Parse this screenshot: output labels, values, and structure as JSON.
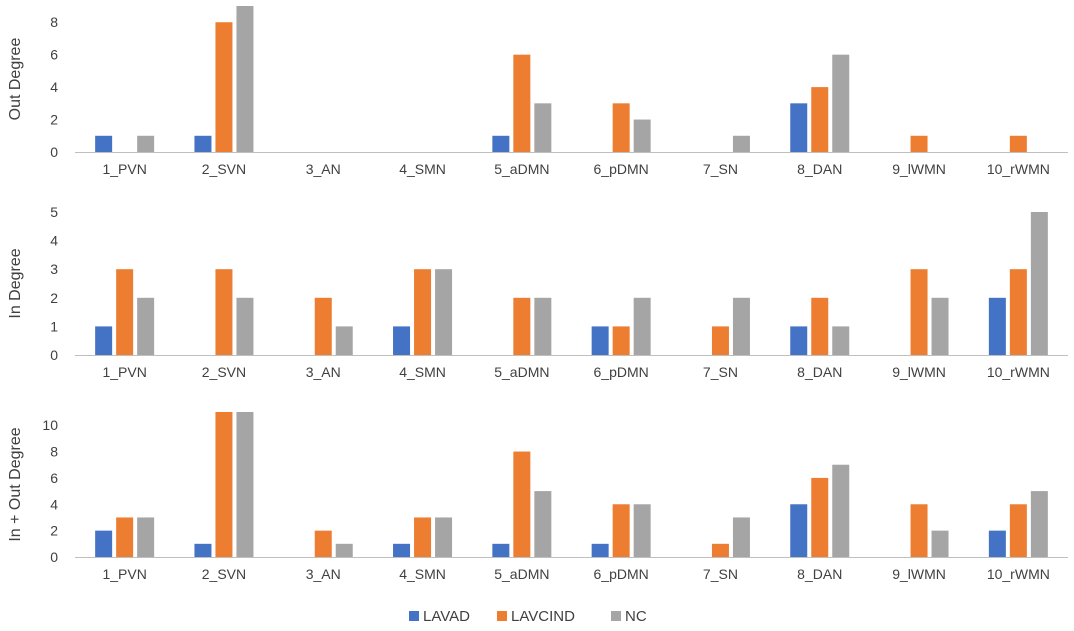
{
  "chart_data": [
    {
      "type": "bar",
      "title": "",
      "xlabel": "",
      "ylabel": "Out Degree",
      "ylim": [
        0,
        9
      ],
      "yticks": [
        0,
        2,
        4,
        6,
        8
      ],
      "categories": [
        "1_PVN",
        "2_SVN",
        "3_AN",
        "4_SMN",
        "5_aDMN",
        "6_pDMN",
        "7_SN",
        "8_DAN",
        "9_lWMN",
        "10_rWMN"
      ],
      "series": [
        {
          "name": "LAVAD",
          "values": [
            1,
            1,
            0,
            0,
            1,
            0,
            0,
            3,
            0,
            0
          ]
        },
        {
          "name": "LAVCIND",
          "values": [
            0,
            8,
            0,
            0,
            6,
            3,
            0,
            4,
            1,
            1
          ]
        },
        {
          "name": "NC",
          "values": [
            1,
            9,
            0,
            0,
            3,
            2,
            1,
            6,
            0,
            0
          ]
        }
      ]
    },
    {
      "type": "bar",
      "title": "",
      "xlabel": "",
      "ylabel": "In Degree",
      "ylim": [
        0,
        5
      ],
      "yticks": [
        0,
        1,
        2,
        3,
        4,
        5
      ],
      "categories": [
        "1_PVN",
        "2_SVN",
        "3_AN",
        "4_SMN",
        "5_aDMN",
        "6_pDMN",
        "7_SN",
        "8_DAN",
        "9_lWMN",
        "10_rWMN"
      ],
      "series": [
        {
          "name": "LAVAD",
          "values": [
            1,
            0,
            0,
            1,
            0,
            1,
            0,
            1,
            0,
            2
          ]
        },
        {
          "name": "LAVCIND",
          "values": [
            3,
            3,
            2,
            3,
            2,
            1,
            1,
            2,
            3,
            3
          ]
        },
        {
          "name": "NC",
          "values": [
            2,
            2,
            1,
            3,
            2,
            2,
            2,
            1,
            2,
            5
          ]
        }
      ]
    },
    {
      "type": "bar",
      "title": "",
      "xlabel": "",
      "ylabel": "In + Out Degree",
      "ylim": [
        0,
        11
      ],
      "yticks": [
        0,
        2,
        4,
        6,
        8,
        10
      ],
      "categories": [
        "1_PVN",
        "2_SVN",
        "3_AN",
        "4_SMN",
        "5_aDMN",
        "6_pDMN",
        "7_SN",
        "8_DAN",
        "9_lWMN",
        "10_rWMN"
      ],
      "series": [
        {
          "name": "LAVAD",
          "values": [
            2,
            1,
            0,
            1,
            1,
            1,
            0,
            4,
            0,
            2
          ]
        },
        {
          "name": "LAVCIND",
          "values": [
            3,
            11,
            2,
            3,
            8,
            4,
            1,
            6,
            4,
            4
          ]
        },
        {
          "name": "NC",
          "values": [
            3,
            11,
            1,
            3,
            5,
            4,
            3,
            7,
            2,
            5
          ]
        }
      ]
    }
  ],
  "legend": {
    "position": "bottom-center",
    "items": [
      {
        "name": "LAVAD",
        "color": "#4472c4"
      },
      {
        "name": "LAVCIND",
        "color": "#ed7d31"
      },
      {
        "name": "NC",
        "color": "#a5a5a5"
      }
    ]
  },
  "colors": {
    "LAVAD": "#4472c4",
    "LAVCIND": "#ed7d31",
    "NC": "#a5a5a5",
    "axis": "#bfbfbf",
    "text": "#404040"
  }
}
